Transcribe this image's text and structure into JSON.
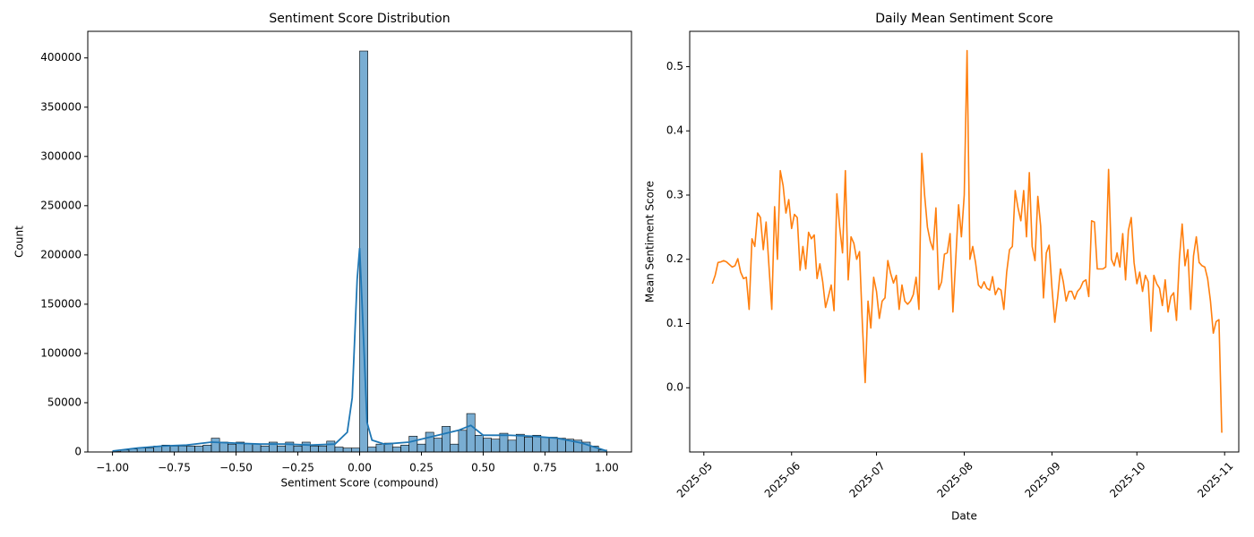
{
  "chart_data": [
    {
      "type": "histogram",
      "title": "Sentiment Score Distribution",
      "x_label": "Sentiment Score (compound)",
      "y_label": "Count",
      "color": "#1f77b4",
      "bins": [
        -1,
        -0.9667,
        -0.9333,
        -0.9,
        -0.8667,
        -0.8333,
        -0.8,
        -0.7667,
        -0.7333,
        -0.7,
        -0.6667,
        -0.6333,
        -0.6,
        -0.5667,
        -0.5333,
        -0.5,
        -0.4667,
        -0.4333,
        -0.4,
        -0.3667,
        -0.3333,
        -0.3,
        -0.2667,
        -0.2333,
        -0.2,
        -0.1667,
        -0.1333,
        -0.1,
        -0.0667,
        -0.0333,
        0,
        0.0333,
        0.0667,
        0.1,
        0.1333,
        0.1667,
        0.2,
        0.2333,
        0.2667,
        0.3,
        0.3333,
        0.3667,
        0.4,
        0.4333,
        0.4667,
        0.5,
        0.5333,
        0.5667,
        0.6,
        0.6333,
        0.6667,
        0.7,
        0.7333,
        0.7667,
        0.8,
        0.8333,
        0.8667,
        0.9,
        0.9333,
        0.9667,
        1
      ],
      "values": [
        500,
        2000,
        3000,
        4000,
        4000,
        6000,
        7000,
        6000,
        6000,
        6000,
        6000,
        7000,
        14000,
        10000,
        8000,
        10000,
        8000,
        8000,
        6000,
        10000,
        6000,
        10000,
        6000,
        10000,
        6000,
        6000,
        11000,
        5000,
        4000,
        4000,
        407000,
        5000,
        8000,
        9000,
        5000,
        7000,
        16000,
        8000,
        20000,
        14000,
        26000,
        8000,
        22000,
        39000,
        17000,
        14000,
        13000,
        19000,
        12000,
        18000,
        15000,
        17000,
        15000,
        15000,
        14000,
        13000,
        12000,
        10000,
        6000,
        2000
      ],
      "kde": {
        "color": "#1f77b4",
        "x": [
          -1,
          -0.9,
          -0.8,
          -0.7,
          -0.6,
          -0.5,
          -0.4,
          -0.3,
          -0.2,
          -0.1,
          -0.05,
          -0.03,
          -0.01,
          0,
          0.01,
          0.03,
          0.05,
          0.1,
          0.2,
          0.3,
          0.4,
          0.45,
          0.5,
          0.6,
          0.7,
          0.8,
          0.9,
          1
        ],
        "values": [
          1000,
          4000,
          6000,
          7000,
          10000,
          9000,
          8000,
          8000,
          7000,
          8000,
          20000,
          55000,
          175000,
          207000,
          150000,
          30000,
          12000,
          8000,
          10000,
          16000,
          22000,
          27000,
          17000,
          17000,
          16000,
          14000,
          9000,
          1000
        ]
      },
      "xlim": [
        -1.1,
        1.1
      ],
      "xticks": [
        {
          "value": -1,
          "label": "−1.00"
        },
        {
          "value": -0.75,
          "label": "−0.75"
        },
        {
          "value": -0.5,
          "label": "−0.50"
        },
        {
          "value": -0.25,
          "label": "−0.25"
        },
        {
          "value": 0,
          "label": "0.00"
        },
        {
          "value": 0.25,
          "label": "0.25"
        },
        {
          "value": 0.5,
          "label": "0.50"
        },
        {
          "value": 0.75,
          "label": "0.75"
        },
        {
          "value": 1,
          "label": "1.00"
        }
      ],
      "ylim": [
        0,
        427000
      ],
      "yticks": [
        0,
        50000,
        100000,
        150000,
        200000,
        250000,
        300000,
        350000,
        400000
      ]
    },
    {
      "type": "line",
      "title": "Daily Mean Sentiment Score",
      "x_label": "Date",
      "y_label": "Mean Sentiment Score",
      "color": "#ff7f0e",
      "x": [
        "2025-05-04",
        "2025-05-05",
        "2025-05-06",
        "2025-05-07",
        "2025-05-08",
        "2025-05-09",
        "2025-05-10",
        "2025-05-11",
        "2025-05-12",
        "2025-05-13",
        "2025-05-14",
        "2025-05-15",
        "2025-05-16",
        "2025-05-17",
        "2025-05-18",
        "2025-05-19",
        "2025-05-20",
        "2025-05-21",
        "2025-05-22",
        "2025-05-23",
        "2025-05-24",
        "2025-05-25",
        "2025-05-26",
        "2025-05-27",
        "2025-05-28",
        "2025-05-29",
        "2025-05-30",
        "2025-05-31",
        "2025-06-01",
        "2025-06-02",
        "2025-06-03",
        "2025-06-04",
        "2025-06-05",
        "2025-06-06",
        "2025-06-07",
        "2025-06-08",
        "2025-06-09",
        "2025-06-10",
        "2025-06-11",
        "2025-06-12",
        "2025-06-13",
        "2025-06-14",
        "2025-06-15",
        "2025-06-16",
        "2025-06-17",
        "2025-06-18",
        "2025-06-19",
        "2025-06-20",
        "2025-06-21",
        "2025-06-22",
        "2025-06-23",
        "2025-06-24",
        "2025-06-25",
        "2025-06-26",
        "2025-06-27",
        "2025-06-28",
        "2025-06-29",
        "2025-06-30",
        "2025-07-01",
        "2025-07-02",
        "2025-07-03",
        "2025-07-04",
        "2025-07-05",
        "2025-07-06",
        "2025-07-07",
        "2025-07-08",
        "2025-07-09",
        "2025-07-10",
        "2025-07-11",
        "2025-07-12",
        "2025-07-13",
        "2025-07-14",
        "2025-07-15",
        "2025-07-16",
        "2025-07-17",
        "2025-07-18",
        "2025-07-19",
        "2025-07-20",
        "2025-07-21",
        "2025-07-22",
        "2025-07-23",
        "2025-07-24",
        "2025-07-25",
        "2025-07-26",
        "2025-07-27",
        "2025-07-28",
        "2025-07-29",
        "2025-07-30",
        "2025-07-31",
        "2025-08-01",
        "2025-08-02",
        "2025-08-03",
        "2025-08-04",
        "2025-08-05",
        "2025-08-06",
        "2025-08-07",
        "2025-08-08",
        "2025-08-09",
        "2025-08-10",
        "2025-08-11",
        "2025-08-12",
        "2025-08-13",
        "2025-08-14",
        "2025-08-15",
        "2025-08-16",
        "2025-08-17",
        "2025-08-18",
        "2025-08-19",
        "2025-08-20",
        "2025-08-21",
        "2025-08-22",
        "2025-08-23",
        "2025-08-24",
        "2025-08-25",
        "2025-08-26",
        "2025-08-27",
        "2025-08-28",
        "2025-08-29",
        "2025-08-30",
        "2025-08-31",
        "2025-09-01",
        "2025-09-02",
        "2025-09-03",
        "2025-09-04",
        "2025-09-05",
        "2025-09-06",
        "2025-09-07",
        "2025-09-08",
        "2025-09-09",
        "2025-09-10",
        "2025-09-11",
        "2025-09-12",
        "2025-09-13",
        "2025-09-14",
        "2025-09-15",
        "2025-09-16",
        "2025-09-17",
        "2025-09-18",
        "2025-09-19",
        "2025-09-20",
        "2025-09-21",
        "2025-09-22",
        "2025-09-23",
        "2025-09-24",
        "2025-09-25",
        "2025-09-26",
        "2025-09-27",
        "2025-09-28",
        "2025-09-29",
        "2025-09-30",
        "2025-10-01",
        "2025-10-02",
        "2025-10-03",
        "2025-10-04",
        "2025-10-05",
        "2025-10-06",
        "2025-10-07",
        "2025-10-08",
        "2025-10-09",
        "2025-10-10",
        "2025-10-11",
        "2025-10-12",
        "2025-10-13",
        "2025-10-14",
        "2025-10-15",
        "2025-10-16",
        "2025-10-17",
        "2025-10-18",
        "2025-10-19",
        "2025-10-20",
        "2025-10-21",
        "2025-10-22",
        "2025-10-23",
        "2025-10-24",
        "2025-10-25",
        "2025-10-26",
        "2025-10-27",
        "2025-10-28",
        "2025-10-29",
        "2025-10-30",
        "2025-10-31"
      ],
      "values": [
        0.162,
        0.175,
        0.195,
        0.196,
        0.198,
        0.196,
        0.192,
        0.188,
        0.19,
        0.201,
        0.18,
        0.17,
        0.172,
        0.122,
        0.232,
        0.22,
        0.272,
        0.265,
        0.215,
        0.258,
        0.19,
        0.122,
        0.282,
        0.2,
        0.338,
        0.315,
        0.272,
        0.293,
        0.248,
        0.27,
        0.265,
        0.183,
        0.22,
        0.185,
        0.242,
        0.232,
        0.238,
        0.17,
        0.193,
        0.165,
        0.125,
        0.142,
        0.16,
        0.12,
        0.302,
        0.25,
        0.21,
        0.338,
        0.168,
        0.235,
        0.225,
        0.2,
        0.212,
        0.1,
        0.008,
        0.135,
        0.093,
        0.172,
        0.15,
        0.108,
        0.135,
        0.14,
        0.198,
        0.178,
        0.163,
        0.175,
        0.122,
        0.16,
        0.135,
        0.13,
        0.135,
        0.145,
        0.172,
        0.122,
        0.365,
        0.3,
        0.25,
        0.228,
        0.215,
        0.28,
        0.153,
        0.165,
        0.208,
        0.21,
        0.24,
        0.118,
        0.2,
        0.285,
        0.235,
        0.3,
        0.525,
        0.2,
        0.22,
        0.195,
        0.16,
        0.155,
        0.165,
        0.155,
        0.152,
        0.173,
        0.145,
        0.155,
        0.152,
        0.122,
        0.18,
        0.215,
        0.22,
        0.307,
        0.28,
        0.26,
        0.307,
        0.235,
        0.335,
        0.22,
        0.198,
        0.298,
        0.252,
        0.14,
        0.21,
        0.222,
        0.155,
        0.102,
        0.14,
        0.185,
        0.165,
        0.135,
        0.15,
        0.15,
        0.138,
        0.15,
        0.155,
        0.165,
        0.168,
        0.142,
        0.26,
        0.258,
        0.185,
        0.185,
        0.185,
        0.188,
        0.34,
        0.2,
        0.19,
        0.21,
        0.188,
        0.24,
        0.168,
        0.245,
        0.265,
        0.195,
        0.162,
        0.18,
        0.15,
        0.175,
        0.165,
        0.088,
        0.175,
        0.162,
        0.155,
        0.128,
        0.168,
        0.118,
        0.142,
        0.148,
        0.105,
        0.2,
        0.255,
        0.19,
        0.215,
        0.122,
        0.205,
        0.235,
        0.195,
        0.19,
        0.188,
        0.17,
        0.135,
        0.085,
        0.103,
        0.106,
        -0.07
      ],
      "xlim": [
        "2025-04-26",
        "2025-11-06"
      ],
      "xticks": [
        {
          "value": "2025-05-01",
          "label": "2025-05"
        },
        {
          "value": "2025-06-01",
          "label": "2025-06"
        },
        {
          "value": "2025-07-01",
          "label": "2025-07"
        },
        {
          "value": "2025-08-01",
          "label": "2025-08"
        },
        {
          "value": "2025-09-01",
          "label": "2025-09"
        },
        {
          "value": "2025-10-01",
          "label": "2025-10"
        },
        {
          "value": "2025-11-01",
          "label": "2025-11"
        }
      ],
      "ylim": [
        -0.1,
        0.555
      ],
      "yticks": [
        {
          "value": 0,
          "label": "0.0"
        },
        0.1,
        0.2,
        0.3,
        0.4,
        0.5
      ]
    }
  ]
}
